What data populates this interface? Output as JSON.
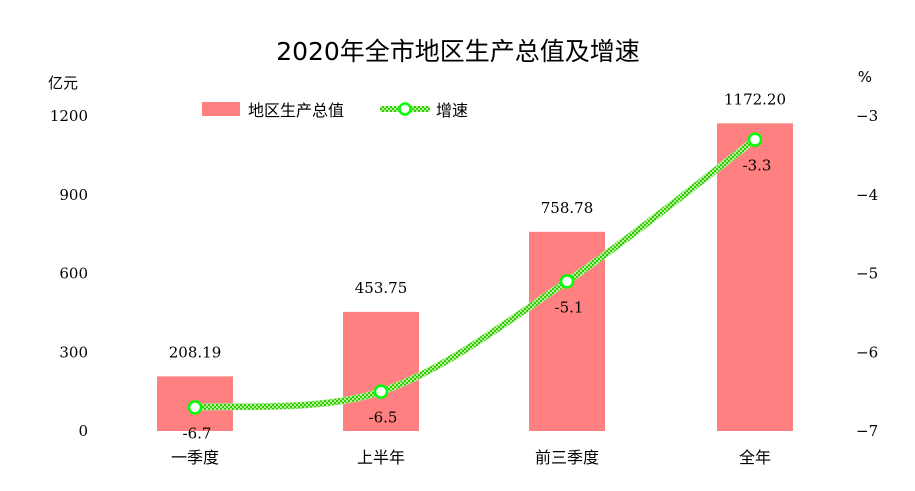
{
  "chart_data": {
    "type": "bar+line",
    "title": "2020年全市地区生产总值及增速",
    "categories": [
      "一季度",
      "上半年",
      "前三季度",
      "全年"
    ],
    "series": [
      {
        "name": "地区生产总值",
        "type": "bar",
        "axis": "left",
        "values": [
          208.19,
          453.75,
          758.78,
          1172.2
        ],
        "labels": [
          "208.19",
          "453.75",
          "758.78",
          "1172.20"
        ],
        "color": "#ff8080"
      },
      {
        "name": "增速",
        "type": "line",
        "axis": "right",
        "values": [
          -6.7,
          -6.5,
          -5.1,
          -3.3
        ],
        "labels": [
          "-6.7",
          "-6.5",
          "-5.1",
          "-3.3"
        ],
        "color": "#33cc00",
        "marker_color": "#00ff00"
      }
    ],
    "left_axis": {
      "unit": "亿元",
      "min": 0,
      "max": 1200,
      "ticks": [
        0,
        300,
        600,
        900,
        1200
      ]
    },
    "right_axis": {
      "unit": "%",
      "min": -7,
      "max": -3,
      "ticks": [
        -3,
        -4,
        -5,
        -6,
        -7
      ]
    },
    "legend_position": "top-left",
    "grid": false
  }
}
